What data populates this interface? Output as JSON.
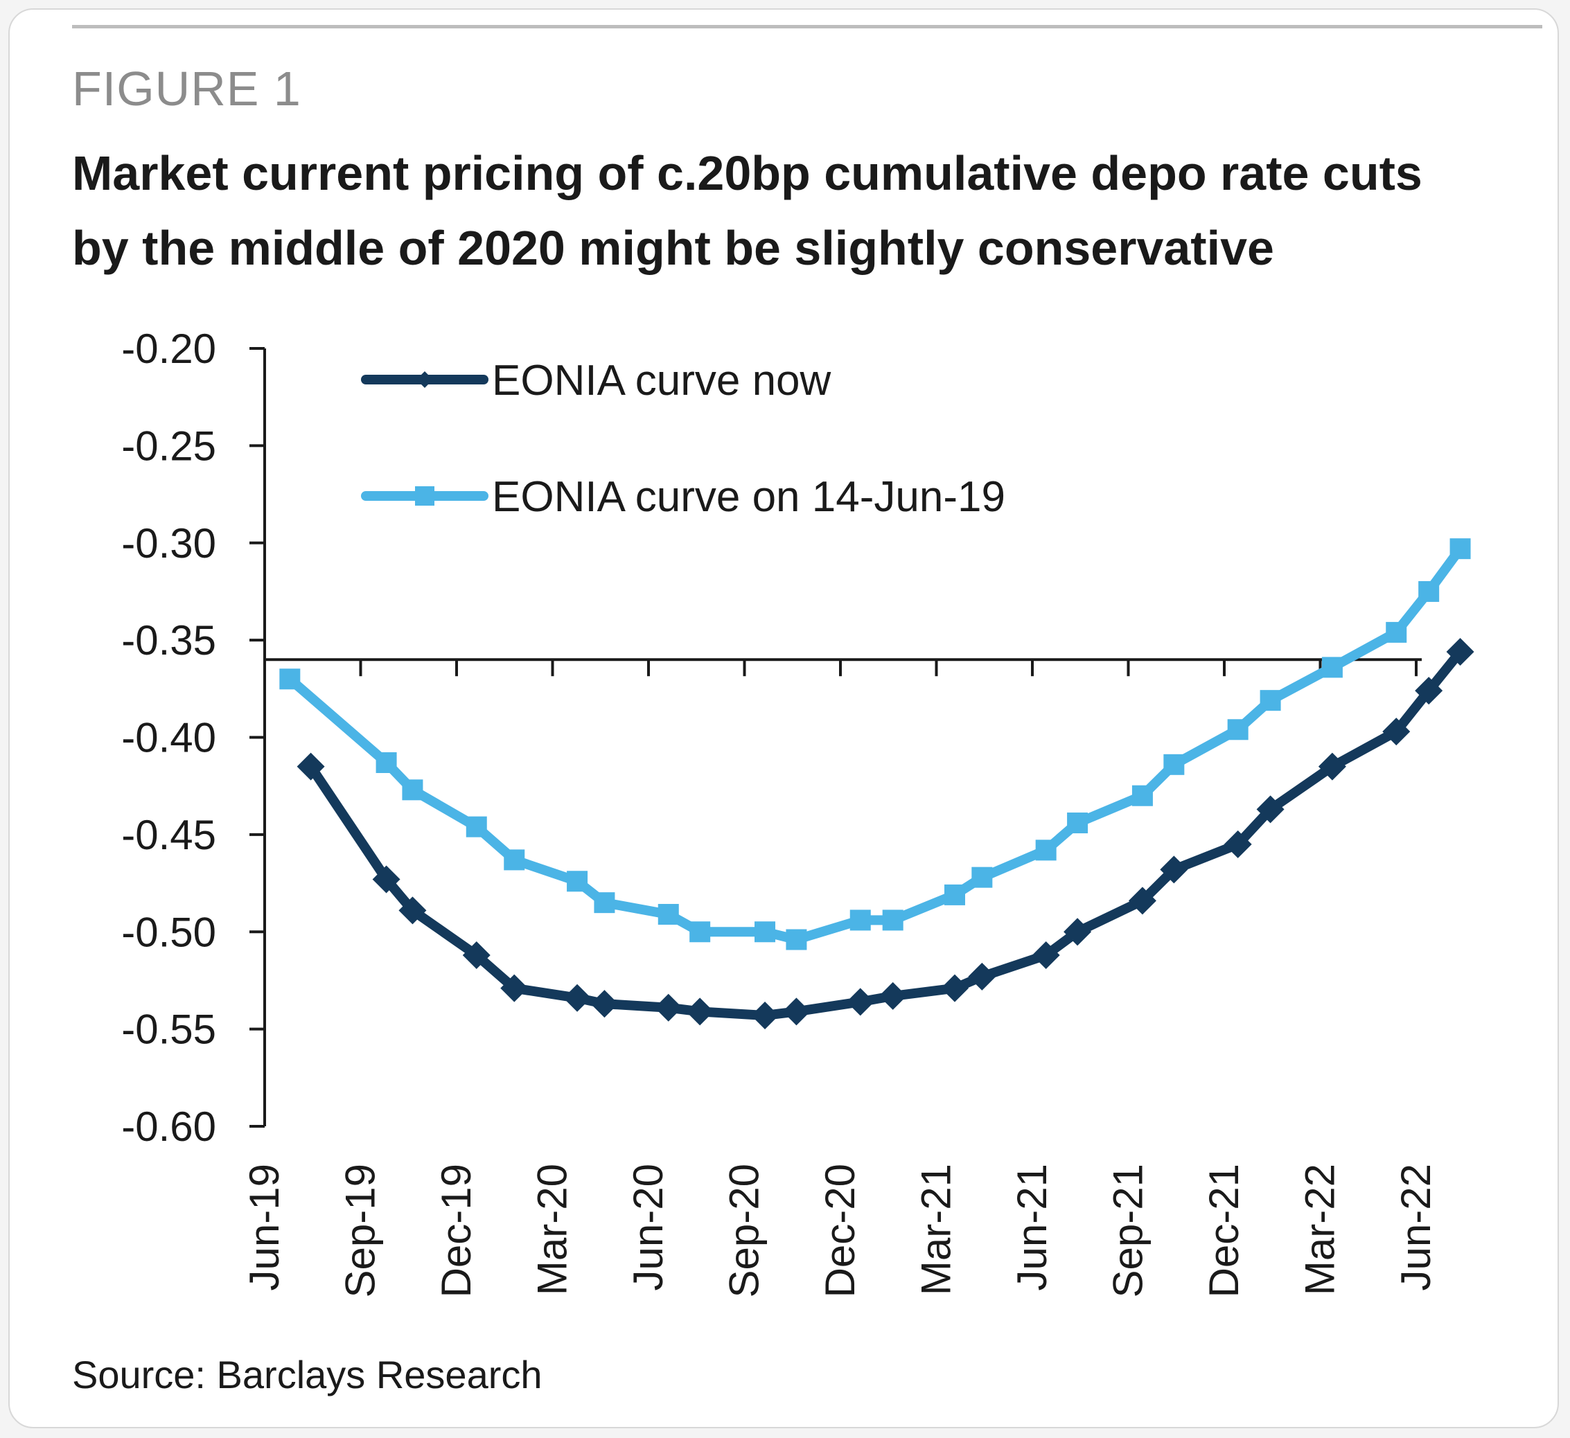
{
  "figure_label": "FIGURE 1",
  "title_lines": [
    "Market current pricing of c.20bp cumulative depo rate cuts",
    "by the middle of 2020 might be slightly conservative"
  ],
  "source": "Source: Barclays Research",
  "colors": {
    "now": "#14395b",
    "past": "#4bb4e6",
    "axis": "#1a1a1a"
  },
  "chart_data": {
    "type": "line",
    "title": "Market current pricing of c.20bp cumulative depo rate cuts by the middle of 2020 might be slightly conservative",
    "xlabel": "",
    "ylabel": "",
    "ylim": [
      -0.6,
      -0.2
    ],
    "yticks": [
      -0.2,
      -0.25,
      -0.3,
      -0.35,
      -0.4,
      -0.45,
      -0.5,
      -0.55,
      -0.6
    ],
    "ytick_labels": [
      "-0.20",
      "-0.25",
      "-0.30",
      "-0.35",
      "-0.40",
      "-0.45",
      "-0.50",
      "-0.55",
      "-0.60"
    ],
    "x_axis_crosses_at": -0.36,
    "grid": false,
    "legend_position": "top-left",
    "x_categories": [
      "Jun-19",
      "Sep-19",
      "Dec-19",
      "Mar-20",
      "Jun-20",
      "Sep-20",
      "Dec-20",
      "Mar-21",
      "Jun-21",
      "Sep-21",
      "Dec-21",
      "Mar-22",
      "Jun-22"
    ],
    "series": [
      {
        "name": "EONIA curve now",
        "marker": "diamond",
        "color_key": "now",
        "points": [
          [
            "2019-07-15",
            -0.415
          ],
          [
            "2019-09-25",
            -0.473
          ],
          [
            "2019-10-20",
            -0.489
          ],
          [
            "2019-12-20",
            -0.512
          ],
          [
            "2020-01-25",
            -0.529
          ],
          [
            "2020-03-25",
            -0.534
          ],
          [
            "2020-04-20",
            -0.537
          ],
          [
            "2020-06-20",
            -0.539
          ],
          [
            "2020-07-20",
            -0.541
          ],
          [
            "2020-09-20",
            -0.543
          ],
          [
            "2020-10-20",
            -0.541
          ],
          [
            "2020-12-20",
            -0.536
          ],
          [
            "2021-01-20",
            -0.533
          ],
          [
            "2021-03-20",
            -0.529
          ],
          [
            "2021-04-15",
            -0.523
          ],
          [
            "2021-06-15",
            -0.512
          ],
          [
            "2021-07-15",
            -0.5
          ],
          [
            "2021-09-15",
            -0.484
          ],
          [
            "2021-10-15",
            -0.468
          ],
          [
            "2021-12-15",
            -0.455
          ],
          [
            "2022-01-15",
            -0.437
          ],
          [
            "2022-03-15",
            -0.415
          ],
          [
            "2022-05-15",
            -0.397
          ],
          [
            "2022-06-15",
            -0.376
          ],
          [
            "2022-07-15",
            -0.356
          ]
        ]
      },
      {
        "name": "EONIA curve on 14-Jun-19",
        "marker": "square",
        "color_key": "past",
        "points": [
          [
            "2019-06-25",
            -0.37
          ],
          [
            "2019-09-25",
            -0.413
          ],
          [
            "2019-10-20",
            -0.427
          ],
          [
            "2019-12-20",
            -0.446
          ],
          [
            "2020-01-25",
            -0.463
          ],
          [
            "2020-03-25",
            -0.474
          ],
          [
            "2020-04-20",
            -0.485
          ],
          [
            "2020-06-20",
            -0.491
          ],
          [
            "2020-07-20",
            -0.5
          ],
          [
            "2020-09-20",
            -0.5
          ],
          [
            "2020-10-20",
            -0.504
          ],
          [
            "2020-12-20",
            -0.494
          ],
          [
            "2021-01-20",
            -0.494
          ],
          [
            "2021-03-20",
            -0.481
          ],
          [
            "2021-04-15",
            -0.472
          ],
          [
            "2021-06-15",
            -0.458
          ],
          [
            "2021-07-15",
            -0.444
          ],
          [
            "2021-09-15",
            -0.43
          ],
          [
            "2021-10-15",
            -0.414
          ],
          [
            "2021-12-15",
            -0.396
          ],
          [
            "2022-01-15",
            -0.381
          ],
          [
            "2022-03-15",
            -0.364
          ],
          [
            "2022-05-15",
            -0.346
          ],
          [
            "2022-06-15",
            -0.325
          ],
          [
            "2022-07-15",
            -0.303
          ]
        ]
      }
    ]
  }
}
